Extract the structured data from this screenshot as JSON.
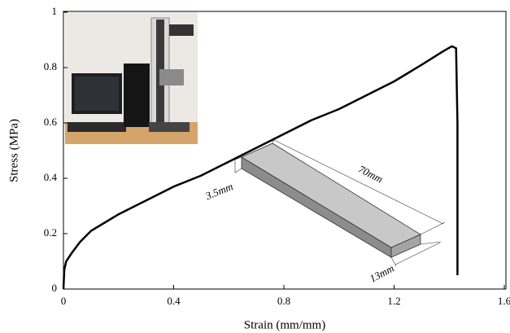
{
  "chart_data": {
    "type": "line",
    "x_label": "Strain (mm/mm)",
    "y_label": "Stress (MPa)",
    "x": [
      0,
      0.003,
      0.01,
      0.03,
      0.06,
      0.1,
      0.2,
      0.3,
      0.4,
      0.5,
      0.6,
      0.7,
      0.8,
      0.9,
      1.0,
      1.1,
      1.2,
      1.3,
      1.38,
      1.41,
      1.425,
      1.43,
      1.43
    ],
    "series": [
      {
        "color": "#000000",
        "values": [
          0,
          0.07,
          0.1,
          0.13,
          0.17,
          0.21,
          0.27,
          0.32,
          0.37,
          0.41,
          0.46,
          0.51,
          0.56,
          0.61,
          0.65,
          0.7,
          0.75,
          0.81,
          0.86,
          0.877,
          0.87,
          0.6,
          0.05
        ]
      }
    ],
    "xlim": [
      0,
      1.6
    ],
    "xticks": [
      0,
      0.4,
      0.8,
      1.2,
      1.6
    ],
    "ylim": [
      0,
      1
    ],
    "yticks": [
      0,
      0.2,
      0.4,
      0.6,
      0.8,
      1
    ],
    "annotations": [
      "70mm",
      "3.5mm",
      "13mm"
    ]
  }
}
